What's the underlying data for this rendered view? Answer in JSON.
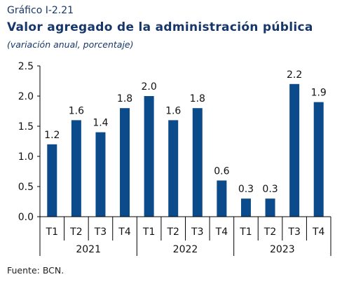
{
  "header": {
    "chart_label": "Gráfico I-2.21",
    "title": "Valor agregado de la administración pública",
    "subtitle": "(variación anual, porcentaje)"
  },
  "footer": {
    "source": "Fuente: BCN."
  },
  "colors": {
    "bar": "#0b4a8b",
    "text": "#17376a",
    "axis": "#000000"
  },
  "chart_data": {
    "type": "bar",
    "categories": [
      "T1",
      "T2",
      "T3",
      "T4",
      "T1",
      "T2",
      "T3",
      "T4",
      "T1",
      "T2",
      "T3",
      "T4"
    ],
    "groups": [
      {
        "label": "2021",
        "count": 4
      },
      {
        "label": "2022",
        "count": 4
      },
      {
        "label": "2023",
        "count": 4
      }
    ],
    "values": [
      1.2,
      1.6,
      1.4,
      1.8,
      2.0,
      1.6,
      1.8,
      0.6,
      0.3,
      0.3,
      2.2,
      1.9
    ],
    "value_labels": [
      "1.2",
      "1.6",
      "1.4",
      "1.8",
      "2.0",
      "1.6",
      "1.8",
      "0.6",
      "0.3",
      "0.3",
      "2.2",
      "1.9"
    ],
    "yticks": [
      "0.0",
      "0.5",
      "1.0",
      "1.5",
      "2.0",
      "2.5"
    ],
    "ylim": [
      0,
      2.5
    ],
    "title": "Valor agregado de la administración pública",
    "xlabel": "",
    "ylabel": "",
    "grid": false,
    "legend": "none"
  }
}
